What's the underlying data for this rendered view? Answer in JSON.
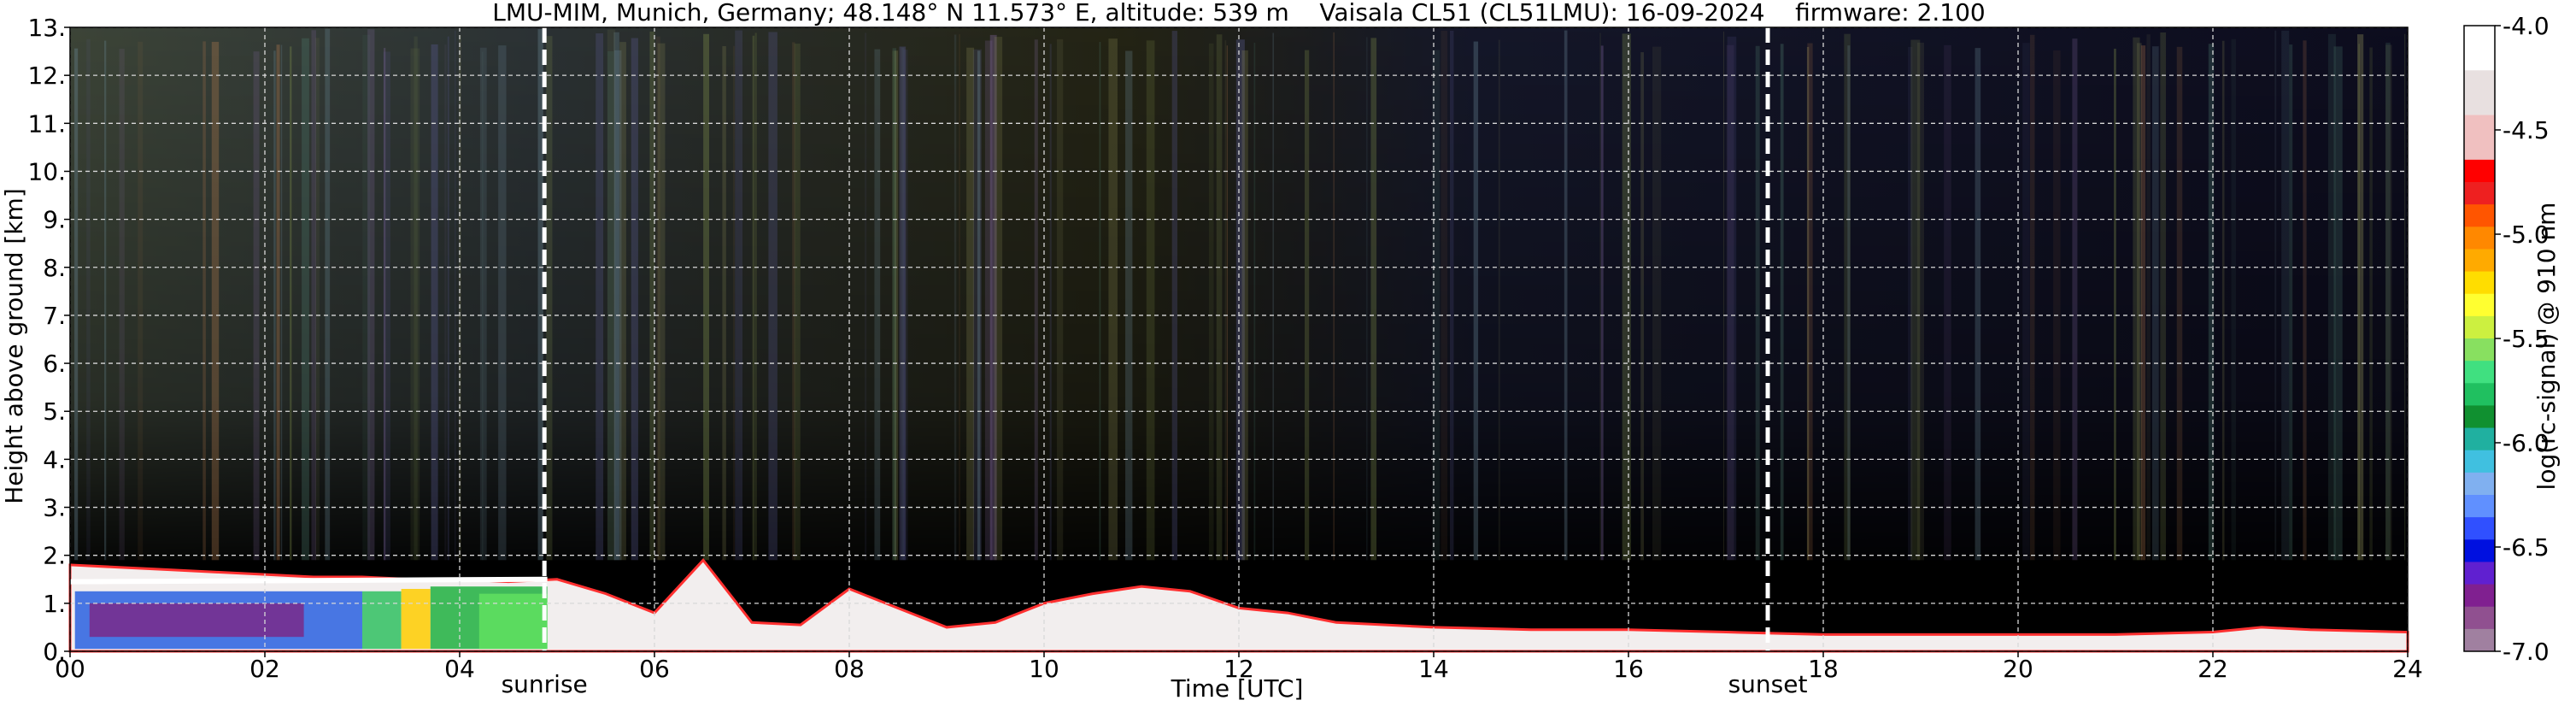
{
  "chart_data": {
    "type": "heatmap",
    "title": "LMU-MIM, Munich, Germany; 48.148° N 11.573° E, altitude: 539 m    Vaisala CL51 (CL51LMU): 16-09-2024    firmware: 2.100",
    "xlabel": "Time [UTC]",
    "ylabel": "Height above ground [km]",
    "xlim": [
      0,
      24
    ],
    "ylim": [
      0,
      13
    ],
    "x_ticks": [
      "00",
      "02",
      "04",
      "06",
      "08",
      "10",
      "12",
      "14",
      "16",
      "18",
      "20",
      "22",
      "24"
    ],
    "x_tick_values": [
      0,
      2,
      4,
      6,
      8,
      10,
      12,
      14,
      16,
      18,
      20,
      22,
      24
    ],
    "y_ticks": [
      "0.",
      "1.",
      "2.",
      "3.",
      "4.",
      "5.",
      "6.",
      "7.",
      "8.",
      "9.",
      "10.",
      "11.",
      "12.",
      "13."
    ],
    "y_tick_values": [
      0,
      1,
      2,
      3,
      4,
      5,
      6,
      7,
      8,
      9,
      10,
      11,
      12,
      13
    ],
    "grid": true,
    "background_color": "#000000",
    "annotations": [
      {
        "label": "sunrise",
        "x": 4.87
      },
      {
        "label": "sunset",
        "x": 17.43
      }
    ],
    "boundary_layer_top_km": [
      [
        0,
        1.8
      ],
      [
        0.5,
        1.75
      ],
      [
        1,
        1.7
      ],
      [
        1.5,
        1.65
      ],
      [
        2,
        1.6
      ],
      [
        2.5,
        1.55
      ],
      [
        3,
        1.55
      ],
      [
        3.5,
        1.5
      ],
      [
        4,
        1.5
      ],
      [
        4.5,
        1.45
      ],
      [
        5,
        1.5
      ],
      [
        5.5,
        1.2
      ],
      [
        6,
        0.8
      ],
      [
        6.5,
        1.9
      ],
      [
        7,
        0.6
      ],
      [
        7.5,
        0.55
      ],
      [
        8,
        1.3
      ],
      [
        8.5,
        0.9
      ],
      [
        9,
        0.5
      ],
      [
        9.5,
        0.6
      ],
      [
        10,
        1.0
      ],
      [
        10.5,
        1.2
      ],
      [
        11,
        1.35
      ],
      [
        11.5,
        1.25
      ],
      [
        12,
        0.9
      ],
      [
        12.5,
        0.8
      ],
      [
        13,
        0.6
      ],
      [
        14,
        0.5
      ],
      [
        15,
        0.45
      ],
      [
        16,
        0.45
      ],
      [
        17,
        0.4
      ],
      [
        18,
        0.35
      ],
      [
        19,
        0.35
      ],
      [
        20,
        0.35
      ],
      [
        21,
        0.35
      ],
      [
        22,
        0.4
      ],
      [
        22.5,
        0.5
      ],
      [
        23,
        0.45
      ],
      [
        24,
        0.4
      ]
    ],
    "colorbar": {
      "label": "log(rc-signal) @ 910 nm",
      "range": [
        -7.0,
        -4.0
      ],
      "ticks": [
        "-4.0",
        "-4.5",
        "-5.0",
        "-5.5",
        "-6.0",
        "-6.5",
        "-7.0"
      ],
      "tick_values": [
        -4.0,
        -4.5,
        -5.0,
        -5.5,
        -6.0,
        -6.5,
        -7.0
      ],
      "colors": [
        "#ffffff",
        "#ffffff",
        "#e8e0e0",
        "#e8e0e0",
        "#f0c0c0",
        "#f0c0c0",
        "#ff0000",
        "#ee2020",
        "#ff5500",
        "#ff8800",
        "#ffaa00",
        "#ffdd00",
        "#ffff30",
        "#ccf040",
        "#88e060",
        "#40e080",
        "#20c060",
        "#109030",
        "#20b0a0",
        "#40c0e0",
        "#80b0f0",
        "#6090ff",
        "#3050ff",
        "#0010e0",
        "#6020d0",
        "#802090",
        "#905090",
        "#a080a0"
      ]
    }
  }
}
